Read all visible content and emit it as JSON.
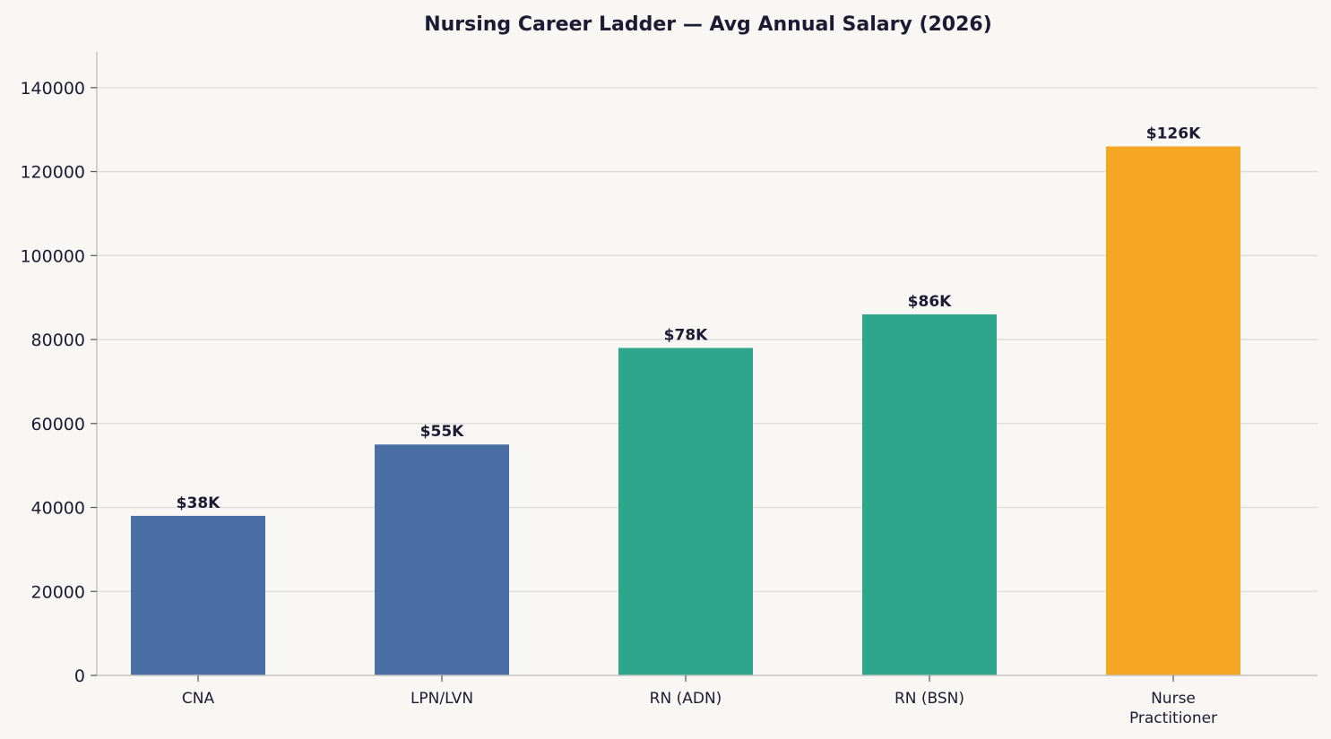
{
  "chart_data": {
    "type": "bar",
    "title": "Nursing Career Ladder — Avg Annual Salary (2026)",
    "xlabel": "",
    "ylabel": "",
    "categories": [
      [
        "CNA"
      ],
      [
        "LPN/LVN"
      ],
      [
        "RN (ADN)"
      ],
      [
        "RN (BSN)"
      ],
      [
        "Nurse",
        "Practitioner"
      ]
    ],
    "values": [
      38000,
      55000,
      78000,
      86000,
      126000
    ],
    "data_labels": [
      "$38K",
      "$55K",
      "$78K",
      "$86K",
      "$126K"
    ],
    "bar_colors": [
      "#4a6fa5",
      "#4a6fa5",
      "#2ea68c",
      "#2ea68c",
      "#f5a623"
    ],
    "ylim": [
      0,
      148500
    ],
    "yticks": [
      0,
      20000,
      40000,
      60000,
      80000,
      100000,
      120000,
      140000
    ],
    "grid": true,
    "legend": "none"
  }
}
